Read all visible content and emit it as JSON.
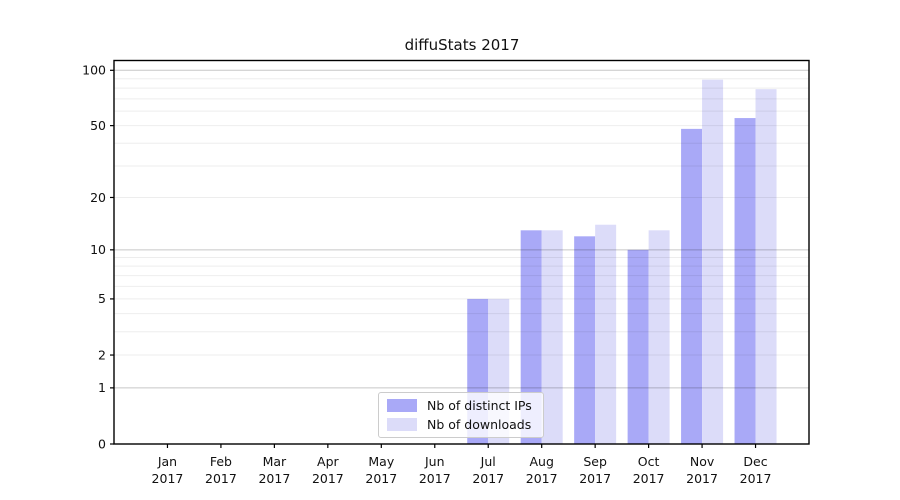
{
  "title": "diffuStats 2017",
  "year_label": "2017",
  "chart_data": {
    "type": "bar",
    "title": "diffuStats 2017",
    "categories": [
      "Jan",
      "Feb",
      "Mar",
      "Apr",
      "May",
      "Jun",
      "Jul",
      "Aug",
      "Sep",
      "Oct",
      "Nov",
      "Dec"
    ],
    "category_year": "2017",
    "series": [
      {
        "name": "Nb of distinct IPs",
        "color": "#a9a9f7",
        "values": [
          0,
          0,
          0,
          0,
          0,
          0,
          5,
          13,
          12,
          10,
          48,
          55
        ]
      },
      {
        "name": "Nb of downloads",
        "color": "#dcdcf9",
        "values": [
          0,
          0,
          0,
          0,
          0,
          0,
          5,
          13,
          14,
          13,
          89,
          79
        ]
      }
    ],
    "xlabel": "",
    "ylabel": "",
    "yscale": "log10(value+1)",
    "yticks": [
      0,
      1,
      2,
      5,
      10,
      20,
      50,
      100
    ],
    "minor_grid_values": [
      2,
      3,
      4,
      5,
      6,
      7,
      8,
      9,
      20,
      30,
      40,
      50,
      60,
      70,
      80,
      90
    ],
    "major_grid_values": [
      1,
      10,
      100
    ],
    "ylim": [
      0,
      112
    ],
    "grid": "horizontal",
    "legend_position": "inside-bottom-center",
    "axis_color": "#000000",
    "major_grid_color": "rgba(0,0,0,0.22)",
    "minor_grid_color": "rgba(0,0,0,0.07)",
    "tick_label_color": "#111111"
  }
}
